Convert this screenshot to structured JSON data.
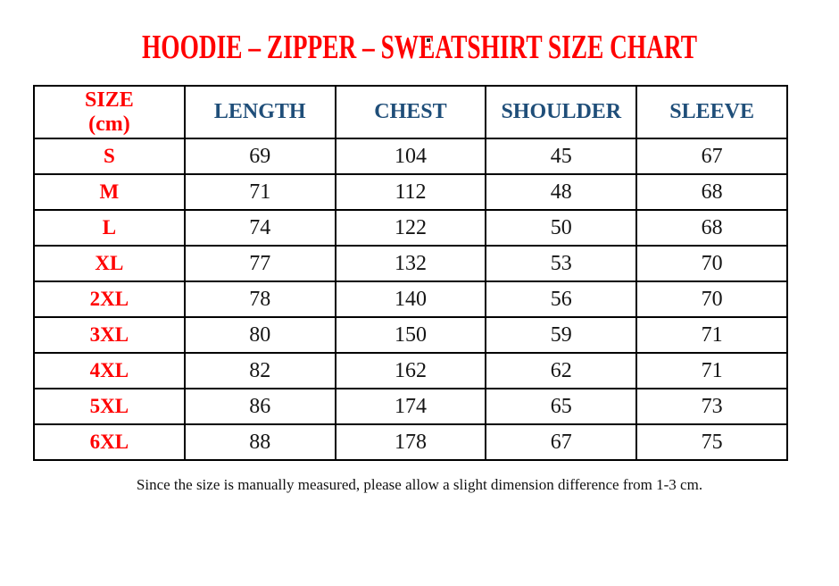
{
  "colors": {
    "title_red": "#ff0000",
    "header_blue": "#1f4e79",
    "size_label_red": "#ff0000",
    "value_ink": "#141414",
    "border": "#000000",
    "background": "#ffffff"
  },
  "header": {
    "size_line1": "SIZE",
    "size_line2": "(cm)"
  },
  "chart_data": {
    "type": "table",
    "title": "HOODIE – ZIPPER – SWEATSHIRT SIZE CHART",
    "units": "cm",
    "columns": [
      "SIZE (cm)",
      "LENGTH",
      "CHEST",
      "SHOULDER",
      "SLEEVE"
    ],
    "rows": [
      [
        "S",
        69,
        104,
        45,
        67
      ],
      [
        "M",
        71,
        112,
        48,
        68
      ],
      [
        "L",
        74,
        122,
        50,
        68
      ],
      [
        "XL",
        77,
        132,
        53,
        70
      ],
      [
        "2XL",
        78,
        140,
        56,
        70
      ],
      [
        "3XL",
        80,
        150,
        59,
        71
      ],
      [
        "4XL",
        82,
        162,
        62,
        71
      ],
      [
        "5XL",
        86,
        174,
        65,
        73
      ],
      [
        "6XL",
        88,
        178,
        67,
        75
      ]
    ],
    "footnote": "Since the size is manually measured, please allow a slight dimension difference from 1-3 cm.",
    "layout": {
      "grid": "on",
      "header_row": true,
      "first_column_is_label": true
    }
  }
}
